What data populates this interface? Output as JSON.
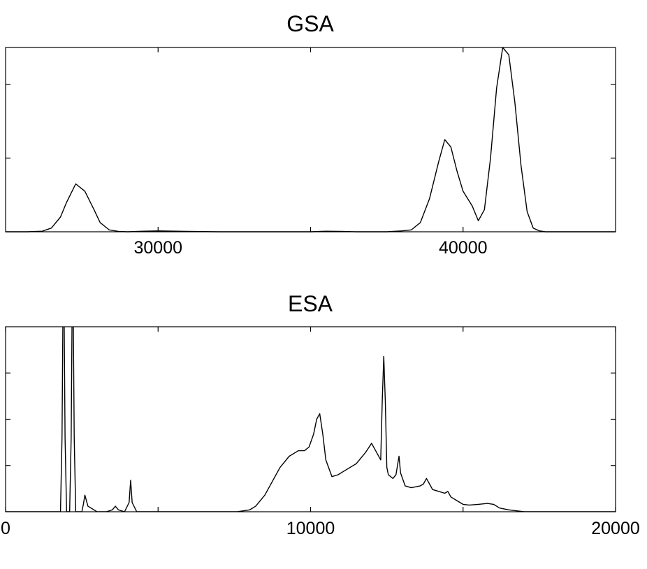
{
  "chart_data": [
    {
      "type": "line",
      "title": "GSA",
      "xlabel": "",
      "ylabel": "",
      "xlim": [
        25000,
        45000
      ],
      "ylim": [
        0,
        1.0
      ],
      "xticks": [
        30000,
        35000,
        40000
      ],
      "xtick_labels": [
        "30000",
        "",
        "40000"
      ],
      "yticks": [
        0.4,
        0.8
      ],
      "grid": false,
      "legend": "none",
      "series": [
        {
          "x": [
            25000,
            25700,
            26200,
            26500,
            26800,
            27000,
            27300,
            27600,
            27900,
            28100,
            28400,
            28700,
            29000,
            29500,
            30000,
            31000,
            32000,
            33000,
            34000,
            35000,
            35500,
            36000,
            36500,
            37000,
            37500,
            38000,
            38300,
            38600,
            38900,
            39200,
            39400,
            39600,
            39800,
            40000,
            40300,
            40500,
            40700,
            40900,
            41100,
            41300,
            41500,
            41700,
            41900,
            42100,
            42300,
            42500,
            42700,
            43000,
            43500,
            44000,
            45000
          ],
          "values": [
            0,
            0,
            0.003,
            0.02,
            0.08,
            0.16,
            0.26,
            0.22,
            0.12,
            0.05,
            0.01,
            0.002,
            0,
            0.003,
            0.005,
            0.002,
            0,
            0,
            0,
            0,
            0.003,
            0.002,
            0,
            0,
            0,
            0.005,
            0.01,
            0.05,
            0.18,
            0.38,
            0.5,
            0.46,
            0.33,
            0.22,
            0.14,
            0.06,
            0.12,
            0.4,
            0.78,
            1.0,
            0.96,
            0.7,
            0.36,
            0.11,
            0.02,
            0.005,
            0,
            0,
            0,
            0,
            0
          ]
        }
      ]
    },
    {
      "type": "line",
      "title": "ESA",
      "xlabel": "",
      "ylabel": "",
      "xlim": [
        0,
        20000
      ],
      "ylim": [
        0,
        1.0
      ],
      "xticks": [
        0,
        5000,
        10000,
        15000,
        20000
      ],
      "xtick_labels": [
        "0",
        "",
        "10000",
        "",
        "20000"
      ],
      "yticks": [
        0.25,
        0.5,
        0.75
      ],
      "grid": false,
      "legend": "none",
      "series": [
        {
          "x": [
            0,
            1800,
            1850,
            1900,
            1950,
            2000,
            2100,
            2150,
            2200,
            2250,
            2300,
            2400,
            2500,
            2550,
            2600,
            2700,
            3000,
            3300,
            3500,
            3600,
            3700,
            3900,
            4050,
            4100,
            4150,
            4300,
            5000,
            6000,
            7000,
            7600,
            8000,
            8200,
            8500,
            8800,
            9000,
            9300,
            9600,
            9800,
            9950,
            10100,
            10200,
            10300,
            10400,
            10500,
            10700,
            10900,
            11100,
            11500,
            11800,
            12000,
            12200,
            12300,
            12350,
            12400,
            12450,
            12500,
            12550,
            12700,
            12800,
            12850,
            12900,
            12950,
            13100,
            13300,
            13600,
            13700,
            13800,
            13900,
            14000,
            14200,
            14400,
            14500,
            14600,
            14800,
            15000,
            15200,
            15500,
            15800,
            16000,
            16200,
            16500,
            17000,
            20000
          ],
          "values": [
            0,
            0,
            0.4,
            1.5,
            0.4,
            0,
            0,
            0.4,
            1.5,
            0.4,
            0,
            0,
            0,
            0.04,
            0.09,
            0.03,
            0,
            0,
            0.01,
            0.03,
            0.01,
            0,
            0.05,
            0.17,
            0.05,
            0,
            0,
            0,
            0,
            0,
            0.01,
            0.03,
            0.09,
            0.18,
            0.24,
            0.3,
            0.33,
            0.33,
            0.35,
            0.42,
            0.5,
            0.53,
            0.42,
            0.28,
            0.19,
            0.2,
            0.22,
            0.26,
            0.32,
            0.37,
            0.31,
            0.28,
            0.6,
            0.84,
            0.6,
            0.24,
            0.2,
            0.18,
            0.2,
            0.25,
            0.3,
            0.21,
            0.14,
            0.13,
            0.14,
            0.15,
            0.18,
            0.15,
            0.12,
            0.11,
            0.1,
            0.11,
            0.08,
            0.06,
            0.04,
            0.036,
            0.04,
            0.045,
            0.04,
            0.02,
            0.01,
            0,
            0
          ]
        }
      ]
    }
  ]
}
